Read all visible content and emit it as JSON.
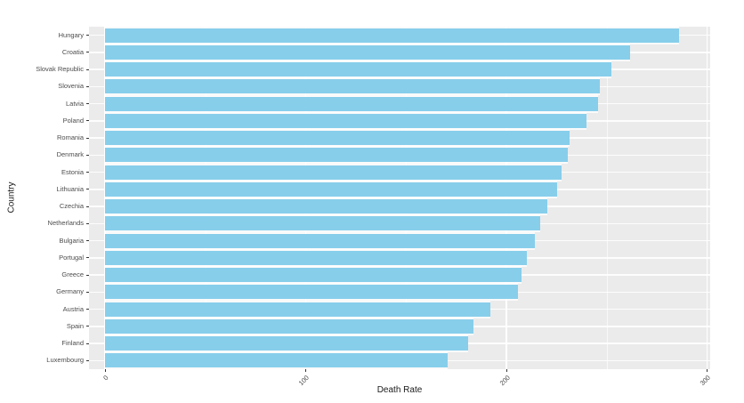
{
  "chart_data": {
    "type": "bar",
    "orientation": "horizontal",
    "title": "",
    "xlabel": "Death Rate",
    "ylabel": "Country",
    "categories": [
      "Hungary",
      "Croatia",
      "Slovak Republic",
      "Slovenia",
      "Latvia",
      "Poland",
      "Romania",
      "Denmark",
      "Estonia",
      "Lithuania",
      "Czechia",
      "Netherlands",
      "Bulgaria",
      "Portugal",
      "Greece",
      "Germany",
      "Austria",
      "Spain",
      "Finland",
      "Luxembourg"
    ],
    "values": [
      286.0,
      261.6,
      252.4,
      246.5,
      245.5,
      240.1,
      231.4,
      230.6,
      227.7,
      225.2,
      220.6,
      216.9,
      214.3,
      210.4,
      207.4,
      205.9,
      191.8,
      183.7,
      181.0,
      170.6
    ],
    "x_ticks": [
      0,
      100,
      200,
      300
    ],
    "xlim": [
      0,
      300
    ],
    "grid": "on",
    "legend": "none",
    "bar_color": "#87CEEB",
    "panel_color": "#EBEBEB",
    "grid_color": "#FFFFFF",
    "tick_label_color": "#4D4D4D",
    "axis_title_color": "#1A1A1A"
  }
}
